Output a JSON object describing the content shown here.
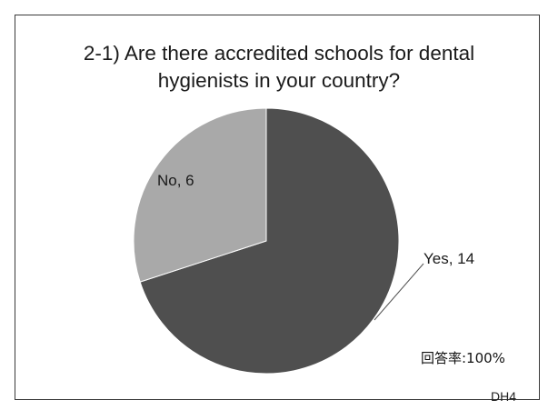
{
  "chart_data": {
    "type": "pie",
    "title_lines": [
      "2-1) Are there accredited schools for dental",
      "hygienists in your country?"
    ],
    "slices": [
      {
        "label": "Yes",
        "value": 14,
        "color": "#4f4f4f"
      },
      {
        "label": "No",
        "value": 6,
        "color": "#a9a9a9"
      }
    ],
    "data_labels": [
      "Yes, 14",
      "No, 6"
    ]
  },
  "footnote": {
    "response_rate": "回答率:100%",
    "code": "DH4"
  }
}
